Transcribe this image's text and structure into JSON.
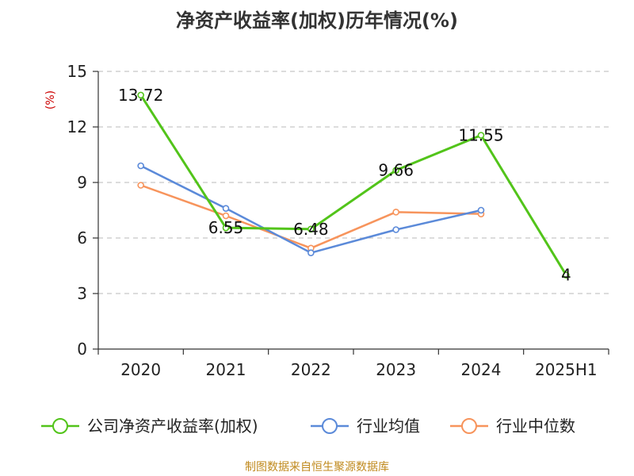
{
  "chart_data": {
    "type": "line",
    "title": "净资产收益率(加权)历年情况(%)",
    "ylabel": "(%)",
    "categories": [
      "2020",
      "2021",
      "2022",
      "2023",
      "2024",
      "2025H1"
    ],
    "ylim": [
      0,
      15
    ],
    "yticks": [
      0,
      3,
      6,
      9,
      12,
      15
    ],
    "grid": true,
    "legend_position": "bottom",
    "series": [
      {
        "name": "公司净资产收益率(加权)",
        "color": "#52c41a",
        "values": [
          13.72,
          6.55,
          6.48,
          9.66,
          11.55,
          4
        ],
        "labels": [
          "13.72",
          "6.55",
          "6.48",
          "9.66",
          "11.55",
          "4"
        ]
      },
      {
        "name": "行业均值",
        "color": "#5b8ad9",
        "values": [
          9.9,
          7.6,
          5.2,
          6.45,
          7.5,
          null
        ]
      },
      {
        "name": "行业中位数",
        "color": "#f7945c",
        "values": [
          8.85,
          7.2,
          5.45,
          7.4,
          7.3,
          null
        ]
      }
    ]
  },
  "source": "制图数据来自恒生聚源数据库"
}
